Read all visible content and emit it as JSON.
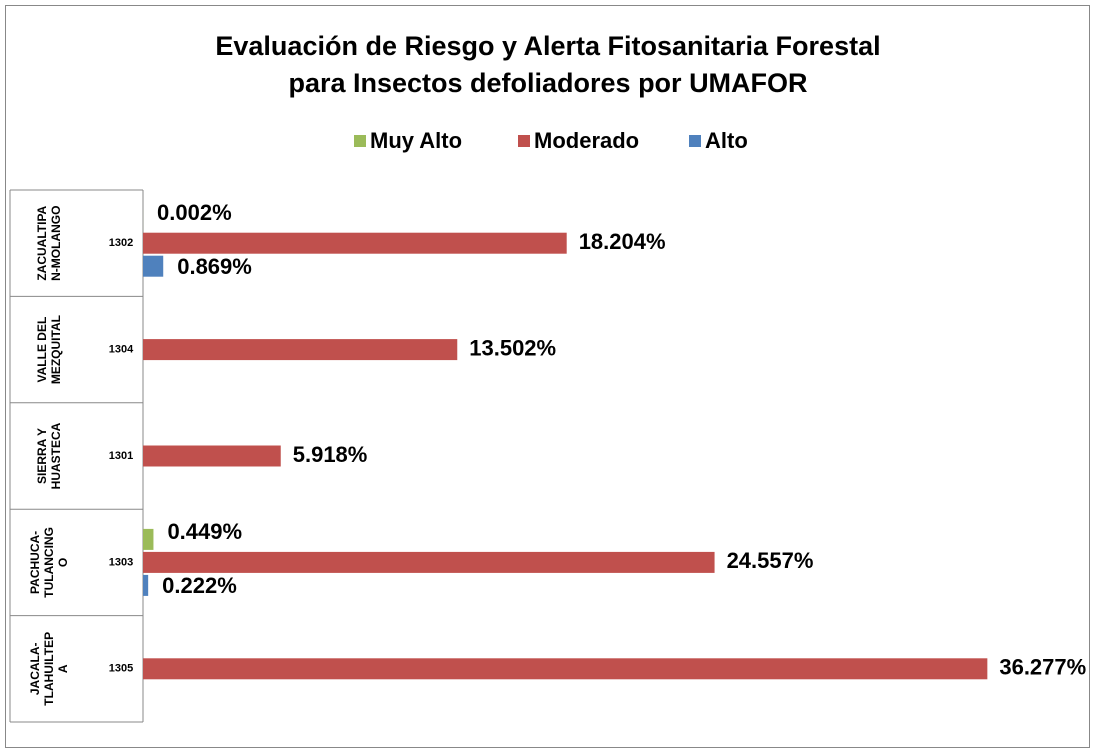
{
  "chart_data": {
    "type": "bar",
    "orientation": "horizontal",
    "title": [
      "Evaluación de Riesgo y Alerta Fitosanitaria Forestal",
      "para Insectos defoliadores por UMAFOR"
    ],
    "categories": [
      "1302",
      "1304",
      "1301",
      "1303",
      "1305"
    ],
    "groups": [
      [
        "ZACUALTIPA",
        "N-MOLANGO"
      ],
      [
        "VALLE DEL",
        "MEZQUITAL"
      ],
      [
        "SIERRA Y",
        "HUASTECA"
      ],
      [
        "PACHUCA-",
        "TULANCING",
        "O"
      ],
      [
        "JACALA-",
        "TLAHUILTEP",
        "A"
      ]
    ],
    "xlim": [
      0,
      40
    ],
    "series": [
      {
        "name": "Muy Alto",
        "color": "#9bbb59",
        "values": [
          0.002,
          null,
          null,
          0.449,
          null
        ],
        "value_labels": [
          "0.002%",
          null,
          null,
          "0.449%",
          null
        ]
      },
      {
        "name": "Moderado",
        "color": "#c0504d",
        "values": [
          18.204,
          13.502,
          5.918,
          24.557,
          36.277
        ],
        "value_labels": [
          "18.204%",
          "13.502%",
          "5.918%",
          "24.557%",
          "36.277%"
        ]
      },
      {
        "name": "Alto",
        "color": "#4f81bd",
        "values": [
          0.869,
          null,
          null,
          0.222,
          null
        ],
        "value_labels": [
          "0.869%",
          null,
          null,
          "0.222%",
          null
        ]
      }
    ],
    "legend": "top"
  }
}
